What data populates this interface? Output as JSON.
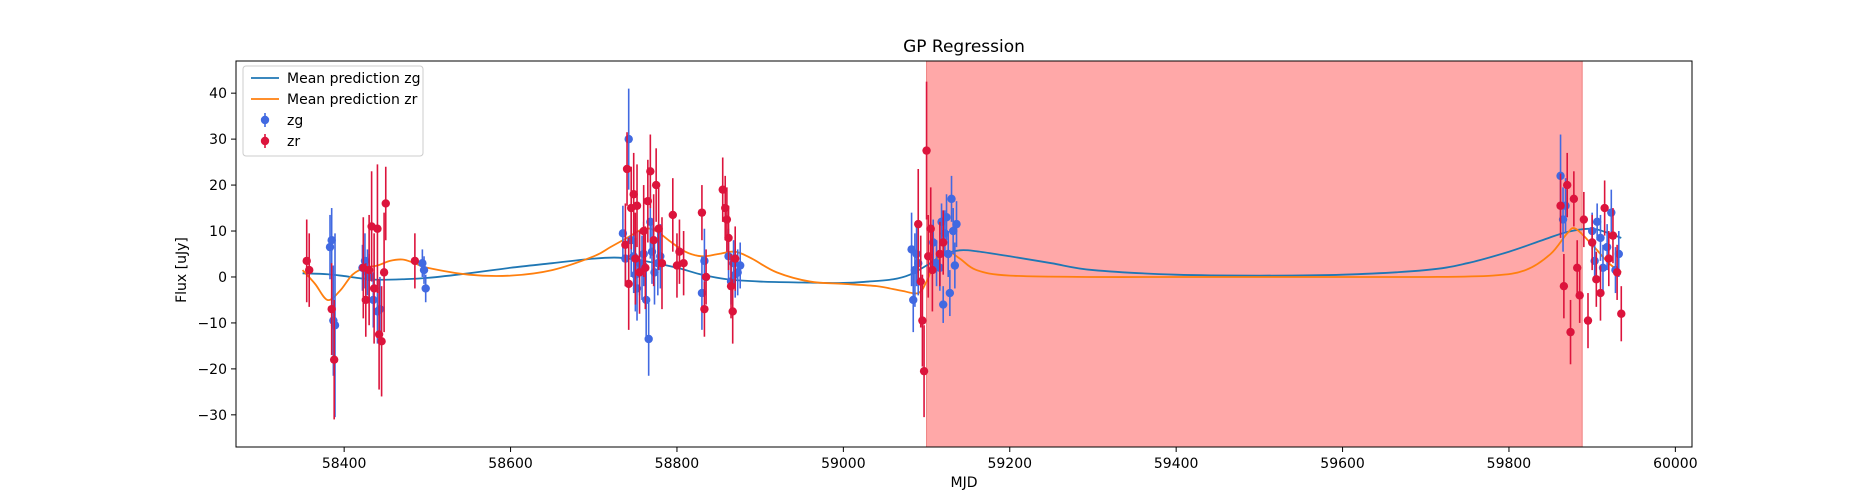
{
  "chart_data": {
    "type": "scatter",
    "title": "GP Regression",
    "xlabel": "MJD",
    "ylabel": "Flux [uJy]",
    "xlim": [
      58270,
      60020
    ],
    "ylim": [
      -37,
      47
    ],
    "xticks": [
      58400,
      58600,
      58800,
      59000,
      59200,
      59400,
      59600,
      59800,
      60000
    ],
    "yticks": [
      -30,
      -20,
      -10,
      0,
      10,
      20,
      30,
      40
    ],
    "grid": false,
    "legend_position": "top-left",
    "shaded_region": {
      "x": [
        59100,
        59888
      ],
      "color": "#ffa8a8"
    },
    "colors": {
      "zg_line": "#1f77b4",
      "zr_line": "#ff7f0e",
      "zg_points": "#4169e1",
      "zr_points": "#dc143c"
    },
    "legend": [
      {
        "label": "Mean prediction zg",
        "kind": "line",
        "color": "#1f77b4"
      },
      {
        "label": "Mean prediction zr",
        "kind": "line",
        "color": "#ff7f0e"
      },
      {
        "label": "zg",
        "kind": "errorbar",
        "color": "#4169e1"
      },
      {
        "label": "zr",
        "kind": "errorbar",
        "color": "#dc143c"
      }
    ],
    "series": [
      {
        "name": "Mean prediction zg",
        "kind": "line",
        "x": [
          58350,
          58380,
          58400,
          58420,
          58440,
          58470,
          58500,
          58550,
          58600,
          58650,
          58700,
          58730,
          58760,
          58800,
          58830,
          58860,
          58900,
          58950,
          59000,
          59030,
          59060,
          59080,
          59100,
          59120,
          59140,
          59160,
          59200,
          59250,
          59300,
          59400,
          59500,
          59600,
          59700,
          59750,
          59800,
          59840,
          59870,
          59900,
          59920,
          59935
        ],
        "y": [
          0.8,
          0.6,
          0.2,
          -0.3,
          -0.6,
          -0.5,
          -0.2,
          0.8,
          2.0,
          3.0,
          4.0,
          4.2,
          3.5,
          2.0,
          0.5,
          -0.5,
          -1.0,
          -1.2,
          -1.3,
          -1.0,
          -0.5,
          0.5,
          2.5,
          4.8,
          5.8,
          5.6,
          4.5,
          3.0,
          1.5,
          0.5,
          0.3,
          0.5,
          1.5,
          3.0,
          5.5,
          8.0,
          9.8,
          10.5,
          9.5,
          8.5
        ]
      },
      {
        "name": "Mean prediction zr",
        "kind": "line",
        "x": [
          58350,
          58365,
          58380,
          58395,
          58410,
          58425,
          58440,
          58455,
          58470,
          58485,
          58500,
          58550,
          58600,
          58650,
          58700,
          58720,
          58740,
          58760,
          58775,
          58790,
          58810,
          58830,
          58850,
          58870,
          58890,
          58920,
          58960,
          59000,
          59040,
          59070,
          59090,
          59100,
          59110,
          59125,
          59140,
          59160,
          59200,
          59300,
          59400,
          59500,
          59600,
          59700,
          59780,
          59820,
          59850,
          59870,
          59880,
          59900,
          59920,
          59935
        ],
        "y": [
          1.5,
          -1.5,
          -5.0,
          -3.0,
          0.5,
          2.0,
          2.5,
          3.5,
          3.8,
          3.0,
          2.0,
          0.5,
          0.3,
          1.5,
          4.5,
          6.5,
          8.5,
          10.5,
          10.0,
          8.0,
          5.5,
          4.5,
          5.0,
          5.5,
          4.0,
          1.0,
          -1.0,
          -1.5,
          -2.0,
          -3.0,
          -3.5,
          -1.0,
          3.0,
          5.5,
          4.0,
          1.5,
          0.3,
          0.0,
          0.0,
          0.0,
          0.0,
          0.0,
          0.3,
          1.5,
          5.0,
          9.5,
          10.5,
          7.0,
          3.0,
          1.0
        ]
      },
      {
        "name": "zg",
        "kind": "errorbar",
        "x": [
          58422,
          58425,
          58428,
          58430,
          58383,
          58385,
          58387,
          58389,
          58435,
          58440,
          58443,
          58494,
          58496,
          58498,
          58735,
          58738,
          58742,
          58745,
          58748,
          58750,
          58752,
          58755,
          58758,
          58760,
          58763,
          58766,
          58768,
          58770,
          58773,
          58777,
          58780,
          58830,
          58833,
          58862,
          58865,
          58868,
          58870,
          58873,
          58876,
          59082,
          59084,
          59086,
          59088,
          59090,
          59108,
          59112,
          59116,
          59118,
          59120,
          59122,
          59124,
          59126,
          59128,
          59130,
          59132,
          59134,
          59136,
          59862,
          59865,
          59868,
          59900,
          59903,
          59906,
          59910,
          59913,
          59918,
          59923,
          59928,
          59932
        ],
        "y": [
          2.0,
          3.5,
          1.0,
          0.0,
          6.5,
          8.0,
          -9.5,
          -10.5,
          -5.0,
          -7.5,
          -7.0,
          3.0,
          1.5,
          -2.5,
          9.5,
          4.0,
          30.0,
          8.0,
          4.5,
          0.5,
          -2.5,
          3.0,
          2.0,
          5.0,
          -5.0,
          -13.5,
          12.0,
          5.5,
          1.0,
          3.0,
          4.5,
          -3.5,
          3.5,
          4.5,
          -1.0,
          3.0,
          0.5,
          1.0,
          2.5,
          6.0,
          -5.0,
          1.5,
          5.0,
          3.0,
          7.5,
          3.0,
          2.0,
          12.0,
          -6.0,
          9.5,
          13.0,
          5.0,
          -3.5,
          17.0,
          10.0,
          2.5,
          11.5,
          22.0,
          12.5,
          15.5,
          10.0,
          3.5,
          12.0,
          8.5,
          2.0,
          6.5,
          14.0,
          1.5,
          5.0
        ],
        "yerr": [
          5,
          6,
          5,
          5,
          7,
          7,
          12,
          20,
          6,
          7,
          7,
          3,
          3,
          3,
          6,
          6,
          11,
          8,
          8,
          8,
          7,
          7,
          7,
          7,
          8,
          8,
          8,
          7,
          7,
          7,
          7,
          8,
          7,
          6,
          5,
          5,
          5,
          5,
          5,
          8,
          7,
          8,
          7,
          7,
          5,
          5,
          5,
          4,
          4,
          5,
          5,
          5,
          5,
          5,
          5,
          5,
          5,
          9,
          7,
          6,
          4,
          4,
          4,
          5,
          5,
          5,
          5,
          5,
          5
        ]
      },
      {
        "name": "zr",
        "kind": "errorbar",
        "x": [
          58355,
          58358,
          58385,
          58388,
          58423,
          58426,
          58430,
          58433,
          58436,
          58440,
          58442,
          58445,
          58448,
          58450,
          58485,
          58738,
          58740,
          58742,
          58745,
          58748,
          58750,
          58752,
          58755,
          58760,
          58762,
          58765,
          58768,
          58772,
          58775,
          58778,
          58782,
          58795,
          58800,
          58803,
          58808,
          58830,
          58833,
          58835,
          58855,
          58858,
          58860,
          58862,
          58865,
          58867,
          58870,
          59090,
          59093,
          59095,
          59097,
          59100,
          59102,
          59105,
          59107,
          59116,
          59120,
          59862,
          59866,
          59870,
          59874,
          59878,
          59882,
          59885,
          59890,
          59895,
          59900,
          59905,
          59910,
          59915,
          59920,
          59925,
          59930,
          59935
        ],
        "y": [
          3.5,
          1.5,
          -7.0,
          -18.0,
          2.0,
          -5.0,
          1.5,
          11.0,
          -2.5,
          10.5,
          -12.5,
          -14.0,
          1.0,
          16.0,
          3.5,
          7.0,
          23.5,
          -1.5,
          15.0,
          18.0,
          4.0,
          15.5,
          1.0,
          10.0,
          2.0,
          16.5,
          23.0,
          8.0,
          20.0,
          10.5,
          3.0,
          13.5,
          2.5,
          5.5,
          3.0,
          14.0,
          -7.0,
          0.0,
          19.0,
          15.0,
          12.5,
          8.5,
          -2.0,
          -7.5,
          4.0,
          11.5,
          -1.0,
          -9.5,
          -20.5,
          27.5,
          4.5,
          10.5,
          1.5,
          5.0,
          7.5,
          15.5,
          -2.0,
          20.0,
          -12.0,
          17.0,
          2.0,
          -4.0,
          12.5,
          -9.5,
          7.5,
          -0.5,
          -3.5,
          15.0,
          4.0,
          9.0,
          1.0,
          -8.0
        ],
        "yerr": [
          9,
          8,
          10,
          13,
          11,
          8,
          12,
          12,
          12,
          14,
          12,
          12,
          13,
          8,
          6,
          9,
          8,
          10,
          9,
          9,
          10,
          9,
          9,
          10,
          9,
          9,
          8,
          10,
          8,
          9,
          10,
          8,
          7,
          7,
          7,
          6,
          6,
          6,
          7,
          7,
          7,
          7,
          7,
          7,
          7,
          12,
          10,
          10,
          10,
          15,
          9,
          9,
          9,
          7,
          7,
          7,
          7,
          7,
          7,
          6,
          6,
          6,
          6,
          6,
          6,
          6,
          6,
          6,
          6,
          6,
          6,
          6
        ]
      }
    ]
  }
}
